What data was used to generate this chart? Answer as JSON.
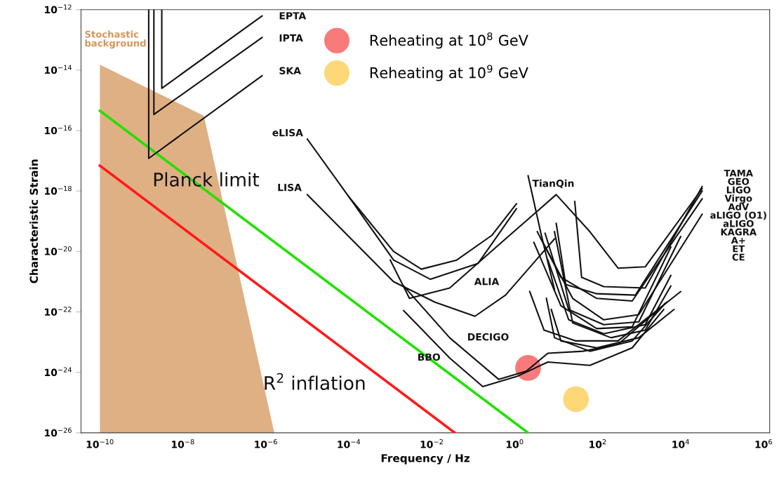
{
  "chart_data": {
    "type": "line",
    "xlabel": "Frequency / Hz",
    "ylabel": "Characteristic Strain",
    "log": "xy",
    "grid": false,
    "legend": "top",
    "line_style": "solid",
    "xlim": [
      3.5e-11,
      1400000.0
    ],
    "ylim": [
      1e-26,
      1e-12
    ],
    "xticks": [
      {
        "value": 1e-10,
        "label": "10$^{−10}$"
      },
      {
        "value": 1e-08,
        "label": "10$^{−8}$"
      },
      {
        "value": 1e-06,
        "label": "10$^{−6}$"
      },
      {
        "value": 0.0001,
        "label": "10$^{−4}$"
      },
      {
        "value": 0.01,
        "label": "10$^{−2}$"
      },
      {
        "value": 1,
        "label": "10$^{0}$"
      },
      {
        "value": 100,
        "label": "10$^{2}$"
      },
      {
        "value": 10000.0,
        "label": "10$^{4}$"
      },
      {
        "value": 1000000.0,
        "label": "10$^{6}$"
      }
    ],
    "yticks": [
      {
        "value": 1e-26,
        "label": "10$^{−26}$"
      },
      {
        "value": 1e-24,
        "label": "10$^{−24}$"
      },
      {
        "value": 1e-22,
        "label": "10$^{−22}$"
      },
      {
        "value": 1e-20,
        "label": "10$^{−20}$"
      },
      {
        "value": 1e-18,
        "label": "10$^{−18}$"
      },
      {
        "value": 1e-16,
        "label": "10$^{−16}$"
      },
      {
        "value": 1e-14,
        "label": "10$^{−14}$"
      },
      {
        "value": 1e-12,
        "label": "10$^{−12}$"
      }
    ],
    "series": [
      {
        "type": "area",
        "color": "#d4955a",
        "x": [
          1e-10,
          3.2e-08,
          1.6e-06
        ],
        "values": [
          1.5e-14,
          3.1e-16,
          1e-26
        ]
      },
      {
        "color": "#22e000",
        "x": [
          1e-10,
          2.1
        ],
        "values": [
          4.5e-16,
          1e-26
        ]
      },
      {
        "color": "#ff1a1a",
        "x": [
          1e-10,
          0.036
        ],
        "values": [
          6.9e-18,
          1e-26
        ]
      },
      {
        "color": "#111111",
        "x": [
          3.1e-09,
          3.1e-09,
          8.1e-07
        ],
        "values": [
          1e-12,
          2.5e-15,
          6.2e-13
        ]
      },
      {
        "color": "#111111",
        "x": [
          2e-09,
          2e-09,
          8.1e-07
        ],
        "values": [
          1e-12,
          3.4e-16,
          1.2e-13
        ]
      },
      {
        "color": "#111111",
        "x": [
          1.5e-09,
          1.5e-09,
          8.1e-07
        ],
        "values": [
          1e-12,
          1.2e-17,
          6.5e-15
        ]
      },
      {
        "color": "#111111",
        "x": [
          1e-05,
          0.0001,
          0.0012,
          0.0056,
          0.04,
          0.28,
          1.1
        ],
        "values": [
          5.2e-17,
          6.5e-19,
          1e-20,
          2.6e-21,
          5.2e-21,
          3.4e-20,
          3.8e-19
        ]
      },
      {
        "color": "#111111",
        "x": [
          0.0001,
          0.0012,
          0.0093,
          0.13,
          1.1
        ],
        "values": [
          6.5e-19,
          5.2e-21,
          1.2e-21,
          4e-21,
          2.6e-19
        ]
      },
      {
        "color": "#111111",
        "x": [
          1e-05,
          0.0012,
          0.012,
          0.11,
          0.6,
          9.1
        ],
        "values": [
          7.6e-19,
          1e-21,
          2.1e-22,
          7.2e-23,
          3.6e-22,
          2.6e-20
        ]
      },
      {
        "color": "#111111",
        "x": [
          0.001,
          0.0029,
          0.027,
          0.6,
          10,
          65,
          310,
          1400,
          33000.0
        ],
        "values": [
          5.2e-21,
          2.8e-22,
          6.2e-22,
          2.6e-20,
          7.6e-19,
          4.5e-20,
          2.8e-21,
          3.1e-21,
          1.2e-18
        ]
      },
      {
        "color": "#111111",
        "x": [
          0.0021,
          0.027,
          0.17,
          1.2,
          6.3,
          65,
          680,
          3900
        ],
        "values": [
          1.1e-22,
          3e-24,
          3.4e-25,
          7.6e-25,
          2.2e-24,
          1.7e-24,
          6.5e-24,
          1.2e-22
        ]
      },
      {
        "color": "#111111",
        "x": [
          0.0021,
          0.027,
          0.41,
          1.9,
          6.3,
          44,
          310,
          4700
        ],
        "values": [
          7.2e-22,
          1.4e-23,
          5.9e-25,
          1.1e-24,
          4.3e-24,
          5e-24,
          8.5e-24,
          2.1e-22
        ]
      },
      {
        "color": "#111111",
        "x": [
          2.1,
          4.4,
          9.1
        ],
        "values": [
          3.2e-18,
          3.4e-20,
          5.5e-22
        ]
      },
      {
        "color": "#111111",
        "x": [
          28,
          41,
          140,
          1400,
          33000.0
        ],
        "values": [
          4.5e-19,
          1.4e-21,
          6.9e-22,
          6.2e-22,
          1.4e-18
        ]
      },
      {
        "color": "#111111",
        "x": [
          10,
          17,
          95,
          810,
          33000.0
        ],
        "values": [
          8.5e-20,
          8.1e-22,
          4e-22,
          3.6e-22,
          1e-18
        ]
      },
      {
        "color": "#111111",
        "x": [
          3.5,
          13,
          95,
          680,
          33000.0
        ],
        "values": [
          4.5e-20,
          1.4e-21,
          2.8e-22,
          2.3e-22,
          5.5e-19
        ]
      },
      {
        "color": "#111111",
        "x": [
          4.3,
          25,
          140,
          980,
          33000.0
        ],
        "values": [
          2.6e-20,
          2.8e-22,
          5.5e-23,
          8.1e-23,
          1.7e-19
        ]
      },
      {
        "color": "#111111",
        "x": [
          5.4,
          20,
          140,
          980,
          10000.0
        ],
        "values": [
          4e-20,
          1.2e-22,
          3.8e-23,
          4.7e-23,
          3.1e-20
        ]
      },
      {
        "color": "#111111",
        "x": [
          2.9,
          13,
          95,
          680,
          5800
        ],
        "values": [
          2e-20,
          1.6e-22,
          2.8e-23,
          3.2e-23,
          1.4e-20
        ]
      },
      {
        "color": "#111111",
        "x": [
          6.3,
          20,
          140,
          1400,
          5800
        ],
        "values": [
          5.2e-21,
          5.5e-23,
          1.9e-23,
          3.8e-23,
          1.6e-21
        ]
      },
      {
        "color": "#111111",
        "x": [
          9.1,
          25,
          210,
          1400,
          5800
        ],
        "values": [
          4.5e-20,
          4.3e-23,
          1.4e-23,
          2.5e-23,
          7.2e-22
        ]
      },
      {
        "color": "#111111",
        "x": [
          2.3,
          5.1,
          30,
          310,
          10000.0
        ],
        "values": [
          4.7e-22,
          2.5e-23,
          1.1e-23,
          1.1e-23,
          4.7e-22
        ]
      },
      {
        "color": "#111111",
        "x": [
          5.8,
          9.1,
          65,
          680,
          4200
        ],
        "values": [
          2.8e-22,
          1.4e-23,
          5e-24,
          1.1e-23,
          1.9e-22
        ]
      },
      {
        "color": "#111111",
        "x": [
          7.6,
          13,
          95,
          980,
          6900
        ],
        "values": [
          1.2e-22,
          1.1e-23,
          6.5e-24,
          1.4e-23,
          1.2e-22
        ]
      },
      {
        "type": "scatter",
        "marker": "circle",
        "name": "Reheating at 10$^{8}$ GeV",
        "color": "#f76b6b",
        "x": [
          2.1
        ],
        "values": [
          1.4e-24
        ]
      },
      {
        "type": "scatter",
        "marker": "circle",
        "name": "Reheating at 10$^{9}$ GeV",
        "color": "#fcd46a",
        "x": [
          30
        ],
        "values": [
          1.3e-25
        ]
      }
    ],
    "annotations": [
      {
        "text": "Stochastic\nbackground",
        "x": 1e-10,
        "y": 1.5e-14
      },
      {
        "text": "EPTA",
        "x": 8.1e-07,
        "y": 6.2e-13
      },
      {
        "text": "IPTA",
        "x": 8.1e-07,
        "y": 1.2e-13
      },
      {
        "text": "SKA",
        "x": 8.1e-07,
        "y": 6.5e-15
      },
      {
        "text": "eLISA",
        "x": 1e-05,
        "y": 5.2e-17
      },
      {
        "text": "LISA",
        "x": 1e-05,
        "y": 7.6e-19
      },
      {
        "text": "TianQin",
        "x": 2.1,
        "y": 3.2e-18
      },
      {
        "text": "ALIA",
        "x": 0.027,
        "y": 6.2e-22
      },
      {
        "text": "DECIGO",
        "x": 0.027,
        "y": 1.4e-23
      },
      {
        "text": "BBO",
        "x": 0.027,
        "y": 3e-24
      },
      "TAMA\nGEO\nLIGO\nVirgo\nAdV\naLIGO (O1)\naLIGO\nKAGRA\nA+\nET\nCE",
      {
        "text": "Planck limit",
        "x": 3.6e-08,
        "y": 1e-18
      },
      {
        "text": "R$^{2}$ inflation",
        "x": 1.5e-05,
        "y": 3.1e-23
      }
    ]
  }
}
